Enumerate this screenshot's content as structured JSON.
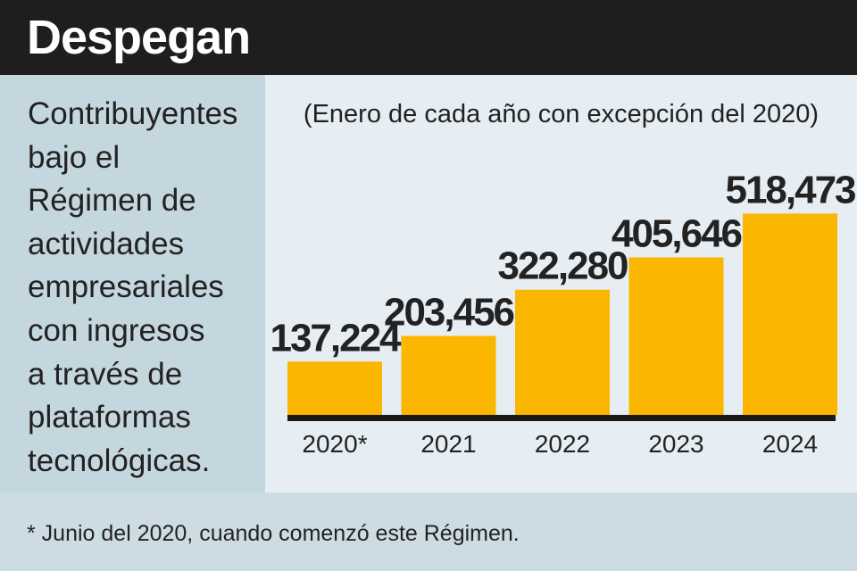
{
  "title": "Despegan",
  "description_lines": [
    "Contribuyentes",
    "bajo el",
    "Régimen de",
    "actividades",
    "empresariales",
    "con ingresos",
    "a través de",
    "plataformas",
    "tecnológicas."
  ],
  "footnote": "* Junio del 2020, cuando comenzó este Régimen.",
  "colors": {
    "bar": "#fbb600",
    "header_bg": "#1e1e1e",
    "baseline": "#1a1a1a",
    "text": "#222222"
  },
  "chart_data": {
    "type": "bar",
    "subtitle": "(Enero de cada año con excepción del 2020)",
    "categories": [
      "2020*",
      "2021",
      "2022",
      "2023",
      "2024"
    ],
    "values": [
      137224,
      203456,
      322280,
      405646,
      518473
    ],
    "value_labels": [
      "137,224",
      "203,456",
      "322,280",
      "405,646",
      "518,473"
    ],
    "ylim": [
      0,
      540000
    ],
    "grid": false,
    "legend": "none"
  }
}
